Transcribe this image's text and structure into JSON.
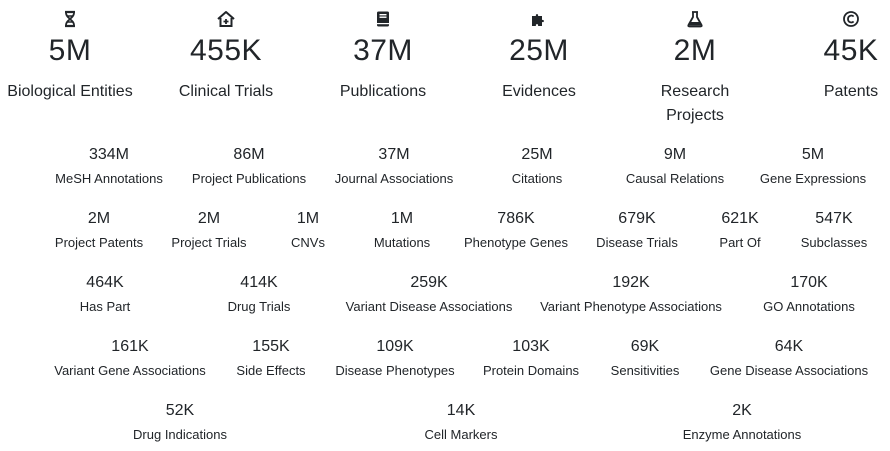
{
  "top_stats": [
    {
      "icon": "dna-icon",
      "value": "5M",
      "label": "Biological Entities"
    },
    {
      "icon": "hospital-icon",
      "value": "455K",
      "label": "Clinical Trials"
    },
    {
      "icon": "book-icon",
      "value": "37M",
      "label": "Publications"
    },
    {
      "icon": "puzzle-piece-icon",
      "value": "25M",
      "label": "Evidences"
    },
    {
      "icon": "flask-icon",
      "value": "2M",
      "label_line1": "Research",
      "label_line2": "Projects"
    },
    {
      "icon": "copyright-icon",
      "value": "45K",
      "label": "Patents"
    }
  ],
  "sub_stats": {
    "row1": [
      {
        "value": "334M",
        "label": "MeSH Annotations"
      },
      {
        "value": "86M",
        "label": "Project Publications"
      },
      {
        "value": "37M",
        "label": "Journal Associations"
      },
      {
        "value": "25M",
        "label": "Citations"
      },
      {
        "value": "9M",
        "label": "Causal Relations"
      },
      {
        "value": "5M",
        "label": "Gene Expressions"
      }
    ],
    "row2": [
      {
        "value": "2M",
        "label": "Project Patents"
      },
      {
        "value": "2M",
        "label": "Project Trials"
      },
      {
        "value": "1M",
        "label": "CNVs"
      },
      {
        "value": "1M",
        "label": "Mutations"
      },
      {
        "value": "786K",
        "label": "Phenotype Genes"
      },
      {
        "value": "679K",
        "label": "Disease Trials"
      },
      {
        "value": "621K",
        "label": "Part Of"
      },
      {
        "value": "547K",
        "label": "Subclasses"
      }
    ],
    "row3": [
      {
        "value": "464K",
        "label": "Has Part"
      },
      {
        "value": "414K",
        "label": "Drug Trials"
      },
      {
        "value": "259K",
        "label": "Variant Disease Associations"
      },
      {
        "value": "192K",
        "label": "Variant Phenotype Associations"
      },
      {
        "value": "170K",
        "label": "GO Annotations"
      }
    ],
    "row4": [
      {
        "value": "161K",
        "label": "Variant Gene Associations"
      },
      {
        "value": "155K",
        "label": "Side Effects"
      },
      {
        "value": "109K",
        "label": "Disease Phenotypes"
      },
      {
        "value": "103K",
        "label": "Protein Domains"
      },
      {
        "value": "69K",
        "label": "Sensitivities"
      },
      {
        "value": "64K",
        "label": "Gene Disease Associations"
      }
    ],
    "row5": [
      {
        "value": "52K",
        "label": "Drug Indications"
      },
      {
        "value": "14K",
        "label": "Cell Markers"
      },
      {
        "value": "2K",
        "label": "Enzyme Annotations"
      }
    ]
  }
}
